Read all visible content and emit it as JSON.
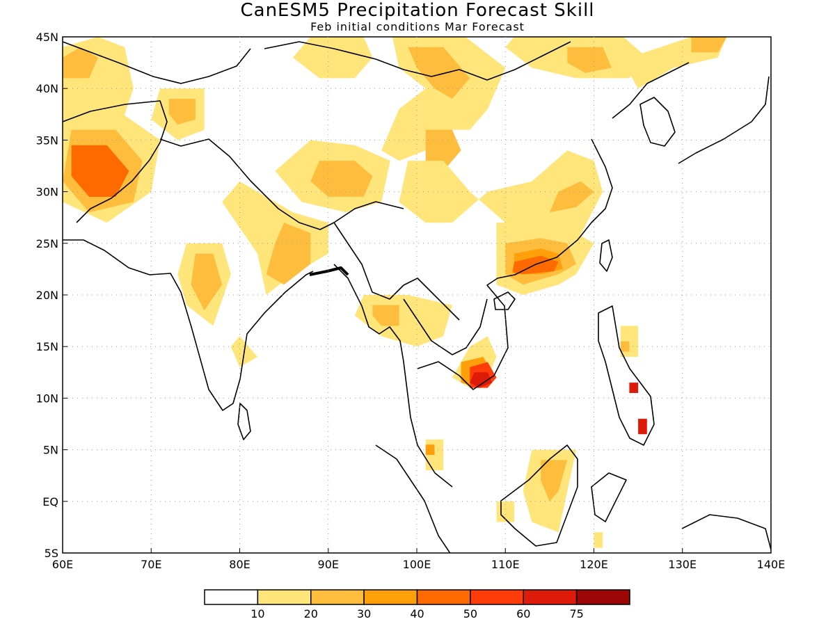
{
  "chart_data": {
    "type": "heatmap",
    "title": "CanESM5 Precipitation Forecast Skill",
    "subtitle": "Feb initial conditions  Mar Forecast",
    "xlim": [
      60,
      140
    ],
    "ylim": [
      -5,
      45
    ],
    "grid": "dotted",
    "x_ticks": [
      {
        "value": 60,
        "label": "60E"
      },
      {
        "value": 70,
        "label": "70E"
      },
      {
        "value": 80,
        "label": "80E"
      },
      {
        "value": 90,
        "label": "90E"
      },
      {
        "value": 100,
        "label": "100E"
      },
      {
        "value": 110,
        "label": "110E"
      },
      {
        "value": 120,
        "label": "120E"
      },
      {
        "value": 130,
        "label": "130E"
      },
      {
        "value": 140,
        "label": "140E"
      }
    ],
    "y_ticks": [
      {
        "value": -5,
        "label": "5S"
      },
      {
        "value": 0,
        "label": "EQ"
      },
      {
        "value": 5,
        "label": "5N"
      },
      {
        "value": 10,
        "label": "10N"
      },
      {
        "value": 15,
        "label": "15N"
      },
      {
        "value": 20,
        "label": "20N"
      },
      {
        "value": 25,
        "label": "25N"
      },
      {
        "value": 30,
        "label": "30N"
      },
      {
        "value": 35,
        "label": "35N"
      },
      {
        "value": 40,
        "label": "40N"
      },
      {
        "value": 45,
        "label": "45N"
      }
    ],
    "colorbar": {
      "placement": "bottom",
      "colors": [
        "#ffffff",
        "#ffe57a",
        "#ffbd3e",
        "#ff9f0a",
        "#ff6a00",
        "#ff3c0a",
        "#de1a08",
        "#9c0606"
      ],
      "labels": [
        "10",
        "20",
        "30",
        "40",
        "50",
        "60",
        "75"
      ]
    },
    "regions": [
      {
        "level": 1,
        "points": [
          [
            60,
            44
          ],
          [
            64,
            45
          ],
          [
            67,
            44
          ],
          [
            68,
            40
          ],
          [
            66,
            35
          ],
          [
            60,
            33
          ]
        ]
      },
      {
        "level": 2,
        "points": [
          [
            60,
            43
          ],
          [
            62,
            44
          ],
          [
            64,
            43
          ],
          [
            63,
            41
          ],
          [
            60,
            41
          ]
        ]
      },
      {
        "level": 1,
        "points": [
          [
            60,
            38
          ],
          [
            66,
            38
          ],
          [
            71,
            35
          ],
          [
            70,
            30
          ],
          [
            65,
            27
          ],
          [
            60,
            29
          ]
        ]
      },
      {
        "level": 2,
        "points": [
          [
            61,
            36
          ],
          [
            66,
            36
          ],
          [
            69,
            33
          ],
          [
            68,
            29
          ],
          [
            63,
            28
          ],
          [
            60,
            31
          ]
        ]
      },
      {
        "level": 4,
        "points": [
          [
            61,
            34.5
          ],
          [
            65,
            34.5
          ],
          [
            67.5,
            32
          ],
          [
            66,
            29.5
          ],
          [
            63,
            29.5
          ],
          [
            61,
            31.5
          ]
        ]
      },
      {
        "level": 1,
        "points": [
          [
            71,
            40
          ],
          [
            76,
            40
          ],
          [
            76,
            36
          ],
          [
            73,
            35
          ],
          [
            70,
            37
          ]
        ]
      },
      {
        "level": 2,
        "points": [
          [
            72,
            39
          ],
          [
            75,
            39
          ],
          [
            75,
            37
          ],
          [
            73,
            36.5
          ],
          [
            72,
            37.5
          ]
        ]
      },
      {
        "level": 1,
        "points": [
          [
            74,
            25
          ],
          [
            78,
            25
          ],
          [
            79,
            22
          ],
          [
            77,
            17
          ],
          [
            74,
            19
          ],
          [
            73,
            22
          ]
        ]
      },
      {
        "level": 2,
        "points": [
          [
            75,
            24
          ],
          [
            77,
            24
          ],
          [
            78,
            21
          ],
          [
            76,
            18.5
          ],
          [
            74.5,
            21
          ]
        ]
      },
      {
        "level": 1,
        "points": [
          [
            80,
            16
          ],
          [
            82,
            14
          ],
          [
            80,
            13
          ],
          [
            79,
            15
          ]
        ]
      },
      {
        "level": 1,
        "points": [
          [
            88,
            35
          ],
          [
            93,
            34.5
          ],
          [
            97,
            33
          ],
          [
            96,
            29
          ],
          [
            92,
            28
          ],
          [
            87,
            29
          ],
          [
            84,
            32
          ]
        ]
      },
      {
        "level": 2,
        "points": [
          [
            89,
            33
          ],
          [
            93,
            33
          ],
          [
            95,
            31.5
          ],
          [
            94,
            29.5
          ],
          [
            90,
            29.5
          ],
          [
            88,
            31
          ]
        ]
      },
      {
        "level": 1,
        "points": [
          [
            80,
            31
          ],
          [
            86,
            28
          ],
          [
            90,
            27
          ],
          [
            90,
            24
          ],
          [
            86,
            22
          ],
          [
            83,
            20
          ],
          [
            82,
            24
          ],
          [
            78,
            29
          ]
        ]
      },
      {
        "level": 2,
        "points": [
          [
            85,
            27
          ],
          [
            88,
            26
          ],
          [
            88,
            23
          ],
          [
            85,
            21
          ],
          [
            83,
            22
          ],
          [
            84,
            25
          ]
        ]
      },
      {
        "level": 1,
        "points": [
          [
            94,
            20
          ],
          [
            99,
            20
          ],
          [
            104,
            19
          ],
          [
            103,
            16
          ],
          [
            100,
            15
          ],
          [
            96,
            16
          ],
          [
            93,
            18
          ]
        ]
      },
      {
        "level": 2,
        "points": [
          [
            95,
            19
          ],
          [
            98,
            19
          ],
          [
            98,
            17
          ],
          [
            96,
            17
          ],
          [
            95,
            18
          ]
        ]
      },
      {
        "level": 1,
        "points": [
          [
            88,
            45
          ],
          [
            94,
            45
          ],
          [
            95,
            43
          ],
          [
            93,
            41
          ],
          [
            89,
            41
          ],
          [
            86,
            43
          ]
        ]
      },
      {
        "level": 1,
        "points": [
          [
            97,
            46
          ],
          [
            104,
            46
          ],
          [
            110,
            42
          ],
          [
            108,
            38
          ],
          [
            106,
            36
          ],
          [
            104,
            36
          ],
          [
            101,
            34
          ],
          [
            98,
            33
          ],
          [
            96,
            34
          ],
          [
            98,
            38
          ],
          [
            101,
            40
          ],
          [
            98,
            42
          ]
        ]
      },
      {
        "level": 2,
        "points": [
          [
            99,
            44
          ],
          [
            103,
            44
          ],
          [
            106,
            41
          ],
          [
            104,
            39
          ],
          [
            102,
            40
          ],
          [
            100,
            42
          ]
        ]
      },
      {
        "level": 2,
        "points": [
          [
            101,
            36
          ],
          [
            104,
            36
          ],
          [
            105,
            34
          ],
          [
            103,
            32
          ],
          [
            101,
            33
          ]
        ]
      },
      {
        "level": 1,
        "points": [
          [
            112,
            46
          ],
          [
            122,
            46
          ],
          [
            126,
            43
          ],
          [
            124,
            41
          ],
          [
            118,
            41
          ],
          [
            113,
            42
          ],
          [
            110,
            44
          ]
        ]
      },
      {
        "level": 2,
        "points": [
          [
            117,
            44
          ],
          [
            121,
            44
          ],
          [
            122,
            42
          ],
          [
            119,
            41.5
          ],
          [
            117,
            42.5
          ]
        ]
      },
      {
        "level": 1,
        "points": [
          [
            124,
            43
          ],
          [
            131,
            45
          ],
          [
            135,
            45
          ],
          [
            134,
            43
          ],
          [
            129,
            42
          ],
          [
            125,
            40
          ],
          [
            124,
            41.5
          ]
        ]
      },
      {
        "level": 2,
        "points": [
          [
            131,
            45
          ],
          [
            135,
            45
          ],
          [
            134,
            43.5
          ],
          [
            131,
            43.5
          ]
        ]
      },
      {
        "level": 1,
        "points": [
          [
            99,
            33
          ],
          [
            103,
            33
          ],
          [
            106,
            30
          ],
          [
            110,
            27
          ],
          [
            118,
            25
          ],
          [
            121,
            30
          ],
          [
            120,
            33
          ],
          [
            117,
            34
          ],
          [
            113,
            31
          ],
          [
            108,
            30
          ],
          [
            104,
            27
          ],
          [
            101,
            27
          ],
          [
            98,
            29
          ]
        ]
      },
      {
        "level": 1,
        "points": [
          [
            109,
            27
          ],
          [
            114,
            27
          ],
          [
            118,
            26
          ],
          [
            120,
            25
          ],
          [
            118,
            22
          ],
          [
            116,
            21
          ],
          [
            112,
            20
          ],
          [
            109,
            21
          ]
        ]
      },
      {
        "level": 2,
        "points": [
          [
            110,
            25
          ],
          [
            114,
            25.5
          ],
          [
            117,
            25
          ],
          [
            118,
            23
          ],
          [
            116,
            22
          ],
          [
            112,
            21
          ],
          [
            110,
            22
          ]
        ]
      },
      {
        "level": 3,
        "points": [
          [
            111,
            24
          ],
          [
            114,
            24.5
          ],
          [
            116,
            24
          ],
          [
            116.5,
            22.5
          ],
          [
            114,
            22
          ],
          [
            111,
            22
          ]
        ]
      },
      {
        "level": 4,
        "points": [
          [
            111,
            23.2
          ],
          [
            114,
            23.8
          ],
          [
            116,
            23.2
          ],
          [
            115.5,
            22.3
          ],
          [
            112,
            22
          ],
          [
            110.8,
            22.2
          ]
        ]
      },
      {
        "level": 2,
        "points": [
          [
            115,
            28
          ],
          [
            118,
            28.5
          ],
          [
            120,
            30
          ],
          [
            118.5,
            31
          ],
          [
            116,
            30
          ]
        ]
      },
      {
        "level": 1,
        "points": [
          [
            106,
            15
          ],
          [
            108,
            16
          ],
          [
            109,
            14
          ],
          [
            108,
            12
          ],
          [
            106,
            11
          ],
          [
            104,
            12
          ]
        ]
      },
      {
        "level": 3,
        "points": [
          [
            105,
            13.5
          ],
          [
            107.5,
            14
          ],
          [
            108.5,
            12.5
          ],
          [
            107,
            11
          ],
          [
            105,
            11.5
          ]
        ]
      },
      {
        "level": 5,
        "points": [
          [
            106,
            13
          ],
          [
            108,
            13.5
          ],
          [
            109,
            12
          ],
          [
            108,
            11
          ],
          [
            106,
            11
          ]
        ]
      },
      {
        "level": 6,
        "points": [
          [
            106.5,
            12.5
          ],
          [
            108,
            12.5
          ],
          [
            108.5,
            11.5
          ],
          [
            107,
            11
          ],
          [
            106,
            11.5
          ]
        ]
      },
      {
        "level": 1,
        "points": [
          [
            101,
            6
          ],
          [
            103,
            6
          ],
          [
            103,
            3
          ],
          [
            101,
            3
          ]
        ]
      },
      {
        "level": 3,
        "points": [
          [
            101,
            5.5
          ],
          [
            102,
            5.5
          ],
          [
            102,
            4.5
          ],
          [
            101,
            4.5
          ]
        ]
      },
      {
        "level": 1,
        "points": [
          [
            113,
            5
          ],
          [
            118,
            5
          ],
          [
            117,
            1
          ],
          [
            116,
            -3
          ],
          [
            113,
            -2
          ],
          [
            112,
            1
          ]
        ]
      },
      {
        "level": 2,
        "points": [
          [
            114,
            4
          ],
          [
            117,
            4
          ],
          [
            116,
            1
          ],
          [
            115,
            0
          ],
          [
            114,
            2
          ]
        ]
      },
      {
        "level": 1,
        "points": [
          [
            109,
            0
          ],
          [
            111,
            0
          ],
          [
            111,
            -2
          ],
          [
            109,
            -2
          ]
        ]
      },
      {
        "level": 1,
        "points": [
          [
            123,
            17
          ],
          [
            125,
            17
          ],
          [
            125,
            14
          ],
          [
            123,
            14
          ]
        ]
      },
      {
        "level": 2,
        "points": [
          [
            123,
            15.5
          ],
          [
            124,
            15.5
          ],
          [
            124,
            14.5
          ],
          [
            123,
            14.5
          ]
        ]
      },
      {
        "level": 6,
        "points": [
          [
            124,
            11.5
          ],
          [
            125,
            11.5
          ],
          [
            125,
            10.5
          ],
          [
            124,
            10.5
          ]
        ]
      },
      {
        "level": 6,
        "points": [
          [
            125,
            8
          ],
          [
            126,
            8
          ],
          [
            126,
            6.5
          ],
          [
            125,
            6.5
          ]
        ]
      },
      {
        "level": 1,
        "points": [
          [
            120,
            -3
          ],
          [
            121,
            -3
          ],
          [
            121,
            -4.5
          ],
          [
            120,
            -4.5
          ]
        ]
      }
    ]
  }
}
